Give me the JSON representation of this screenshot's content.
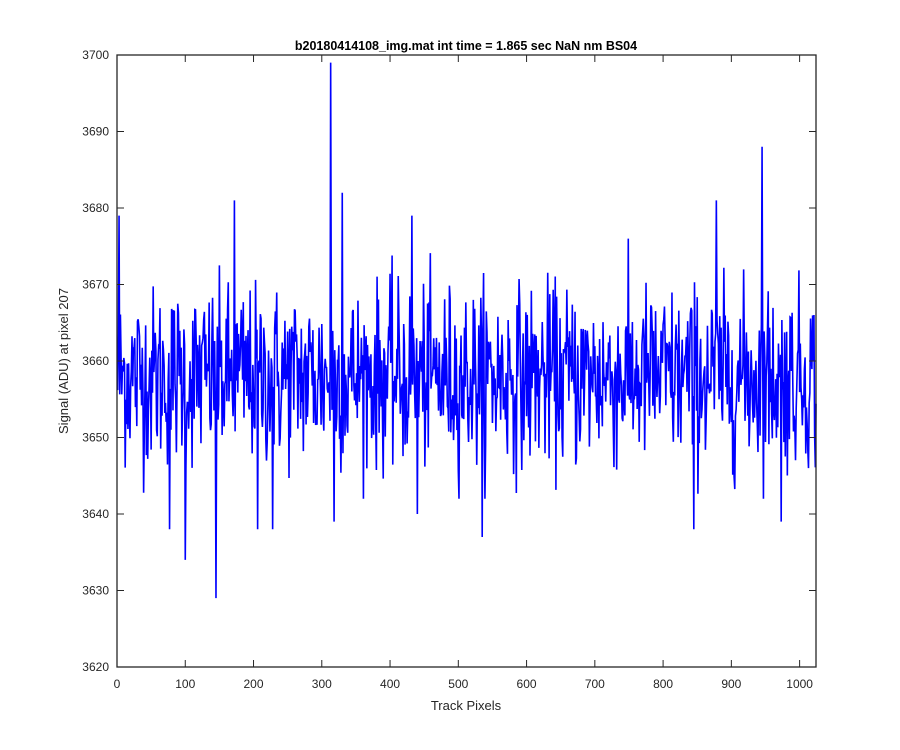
{
  "chart_data": {
    "type": "line",
    "title": "b20180414108_img.mat int time = 1.865 sec  NaN nm BS04",
    "xlabel": "Track Pixels",
    "ylabel": "Signal (ADU) at pixel 207",
    "xlim": [
      0,
      1024
    ],
    "ylim": [
      3620,
      3700
    ],
    "xticks": [
      0,
      100,
      200,
      300,
      400,
      500,
      600,
      700,
      800,
      900,
      1000
    ],
    "yticks": [
      3620,
      3630,
      3640,
      3650,
      3660,
      3670,
      3680,
      3690,
      3700
    ],
    "grid": false,
    "legend": "none",
    "series": [
      {
        "color": "#0000ff",
        "x_start": 1,
        "x_step": 1,
        "n_points": 1024,
        "mean": 3658,
        "notable_points": [
          {
            "x": 3,
            "y": 3679
          },
          {
            "x": 77,
            "y": 3638
          },
          {
            "x": 100,
            "y": 3634
          },
          {
            "x": 145,
            "y": 3629
          },
          {
            "x": 172,
            "y": 3681
          },
          {
            "x": 206,
            "y": 3638
          },
          {
            "x": 228,
            "y": 3638
          },
          {
            "x": 313,
            "y": 3699
          },
          {
            "x": 318,
            "y": 3639
          },
          {
            "x": 330,
            "y": 3682
          },
          {
            "x": 432,
            "y": 3679
          },
          {
            "x": 440,
            "y": 3640
          },
          {
            "x": 535,
            "y": 3637
          },
          {
            "x": 845,
            "y": 3638
          },
          {
            "x": 878,
            "y": 3681
          },
          {
            "x": 945,
            "y": 3688
          },
          {
            "x": 973,
            "y": 3639
          }
        ]
      }
    ]
  }
}
